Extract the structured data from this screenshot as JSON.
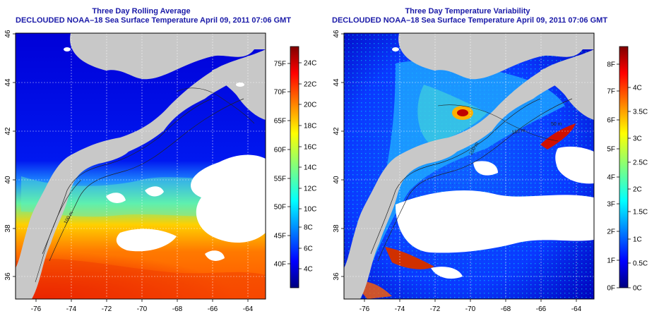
{
  "panels": [
    {
      "title": "Three Day Rolling Average",
      "subtitle": "DECLOUDED NOAA–18 Sea Surface Temperature April 09, 2011 07:06 GMT",
      "lon_ticks": [
        "-76",
        "-74",
        "-72",
        "-70",
        "-68",
        "-66",
        "-64"
      ],
      "lat_ticks": [
        "36",
        "38",
        "40",
        "42",
        "44",
        "46"
      ],
      "colorbar": {
        "left_labels": [
          "75F",
          "70F",
          "65F",
          "60F",
          "55F",
          "50F",
          "45F",
          "40F"
        ],
        "right_labels": [
          "24C",
          "22C",
          "20C",
          "18C",
          "16C",
          "14C",
          "12C",
          "10C",
          "8C",
          "6C",
          "4C"
        ]
      }
    },
    {
      "title": "Three Day Temperature Variability",
      "subtitle": "DECLOUDED NOAA–18 Sea Surface Temperature April 09, 2011 07:06 GMT",
      "lon_ticks": [
        "-76",
        "-74",
        "-72",
        "-70",
        "-68",
        "-66",
        "-64"
      ],
      "lat_ticks": [
        "36",
        "38",
        "40",
        "42",
        "44",
        "46"
      ],
      "colorbar": {
        "left_labels": [
          "8F",
          "7F",
          "6F",
          "5F",
          "4F",
          "3F",
          "2F",
          "1F",
          "0F"
        ],
        "right_labels": [
          "4C",
          "3.5C",
          "3C",
          "2.5C",
          "2C",
          "1.5C",
          "1C",
          "0.5C",
          "0C"
        ]
      }
    }
  ],
  "contour_labels": [
    "100 m",
    "200 m",
    "50 m"
  ],
  "colors": {
    "land": "#c8c8c8",
    "title": "#1a1aa8",
    "jet": [
      "#00007f",
      "#0000ff",
      "#007fff",
      "#00ffff",
      "#7fff7f",
      "#ffff00",
      "#ff7f00",
      "#ff0000",
      "#7f0000"
    ]
  }
}
